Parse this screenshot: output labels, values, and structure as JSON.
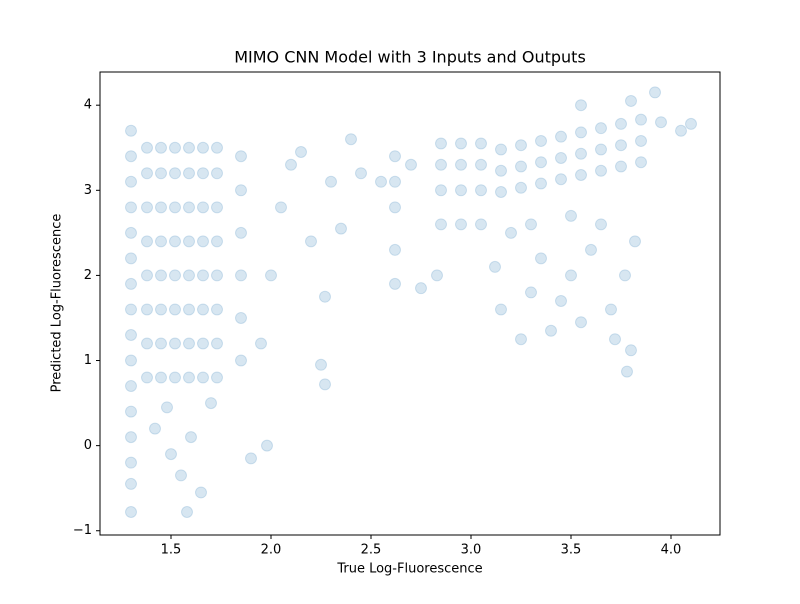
{
  "chart_data": {
    "type": "scatter",
    "title": "MIMO CNN Model with 3 Inputs and Outputs",
    "x_label": "True Log-Fluorescence",
    "y_label": "Predicted Log-Fluorescence",
    "color": "#1f77b4",
    "alpha": 0.18,
    "xlim": [
      1.145,
      4.245
    ],
    "ylim": [
      -1.05,
      4.39
    ],
    "xticks": [
      1.5,
      {
        "value": 2,
        "label": "2.0"
      },
      2.5,
      {
        "value": 3,
        "label": "3.0"
      },
      3.5,
      {
        "value": 4,
        "label": "4.0"
      }
    ],
    "yticks": [
      {
        "value": -1,
        "label": "−1"
      },
      0,
      1,
      2,
      3,
      4
    ],
    "x": [
      1.3,
      1.3,
      1.3,
      1.3,
      1.3,
      1.3,
      1.3,
      1.3,
      1.3,
      1.3,
      1.3,
      1.3,
      1.3,
      1.3,
      1.3,
      1.3,
      1.38,
      1.38,
      1.38,
      1.38,
      1.38,
      1.38,
      1.38,
      1.38,
      1.45,
      1.45,
      1.45,
      1.45,
      1.45,
      1.45,
      1.45,
      1.45,
      1.52,
      1.52,
      1.52,
      1.52,
      1.52,
      1.52,
      1.52,
      1.52,
      1.59,
      1.59,
      1.59,
      1.59,
      1.59,
      1.59,
      1.59,
      1.59,
      1.66,
      1.66,
      1.66,
      1.66,
      1.66,
      1.66,
      1.66,
      1.66,
      1.73,
      1.73,
      1.73,
      1.73,
      1.73,
      1.73,
      1.73,
      1.73,
      1.42,
      1.5,
      1.55,
      1.58,
      1.65,
      1.6,
      1.7,
      1.48,
      1.85,
      1.85,
      1.85,
      1.85,
      1.85,
      1.85,
      1.9,
      1.98,
      1.95,
      2.0,
      2.05,
      2.1,
      2.2,
      2.25,
      2.27,
      2.27,
      2.15,
      2.3,
      2.4,
      2.45,
      2.35,
      2.62,
      2.62,
      2.62,
      2.62,
      2.62,
      2.55,
      2.7,
      2.75,
      2.83,
      2.85,
      2.85,
      2.85,
      2.85,
      2.95,
      2.95,
      2.95,
      2.95,
      3.05,
      3.05,
      3.05,
      3.05,
      3.15,
      3.15,
      3.15,
      3.25,
      3.25,
      3.25,
      3.35,
      3.35,
      3.35,
      3.45,
      3.45,
      3.45,
      3.55,
      3.55,
      3.55,
      3.65,
      3.65,
      3.65,
      3.75,
      3.75,
      3.75,
      3.85,
      3.85,
      3.85,
      3.95,
      4.05,
      4.1,
      3.92,
      3.55,
      3.8,
      3.12,
      3.15,
      3.25,
      3.3,
      3.35,
      3.4,
      3.45,
      3.5,
      3.55,
      3.6,
      3.7,
      3.72,
      3.78,
      3.8,
      3.77,
      3.82,
      3.2,
      3.3,
      3.5,
      3.65
    ],
    "values": [
      -0.78,
      -0.45,
      -0.2,
      0.1,
      0.4,
      0.7,
      1.0,
      1.3,
      1.6,
      1.9,
      2.2,
      2.5,
      2.8,
      3.1,
      3.4,
      3.7,
      0.8,
      1.2,
      1.6,
      2.0,
      2.4,
      2.8,
      3.2,
      3.5,
      0.8,
      1.2,
      1.6,
      2.0,
      2.4,
      2.8,
      3.2,
      3.5,
      0.8,
      1.2,
      1.6,
      2.0,
      2.4,
      2.8,
      3.2,
      3.5,
      0.8,
      1.2,
      1.6,
      2.0,
      2.4,
      2.8,
      3.2,
      3.5,
      0.8,
      1.2,
      1.6,
      2.0,
      2.4,
      2.8,
      3.2,
      3.5,
      0.8,
      1.2,
      1.6,
      2.0,
      2.4,
      2.8,
      3.2,
      3.5,
      0.2,
      -0.1,
      -0.35,
      -0.78,
      -0.55,
      0.1,
      0.5,
      0.45,
      1.0,
      1.5,
      2.0,
      2.5,
      3.0,
      3.4,
      -0.15,
      0.0,
      1.2,
      2.0,
      2.8,
      3.3,
      2.4,
      0.95,
      0.72,
      1.75,
      3.45,
      3.1,
      3.6,
      3.2,
      2.55,
      1.9,
      2.3,
      2.8,
      3.1,
      3.4,
      3.1,
      3.3,
      1.85,
      2.0,
      2.6,
      3.0,
      3.3,
      3.55,
      2.6,
      3.0,
      3.3,
      3.55,
      2.6,
      3.0,
      3.3,
      3.55,
      2.98,
      3.23,
      3.48,
      3.03,
      3.28,
      3.53,
      3.08,
      3.33,
      3.58,
      3.13,
      3.38,
      3.63,
      3.18,
      3.43,
      3.68,
      3.23,
      3.48,
      3.73,
      3.28,
      3.53,
      3.78,
      3.33,
      3.58,
      3.83,
      3.8,
      3.7,
      3.78,
      4.15,
      4.0,
      4.05,
      2.1,
      1.6,
      1.25,
      1.8,
      2.2,
      1.35,
      1.7,
      2.0,
      1.45,
      2.3,
      1.6,
      1.25,
      0.87,
      1.12,
      2.0,
      2.4,
      2.5,
      2.6,
      2.7,
      2.6
    ]
  }
}
